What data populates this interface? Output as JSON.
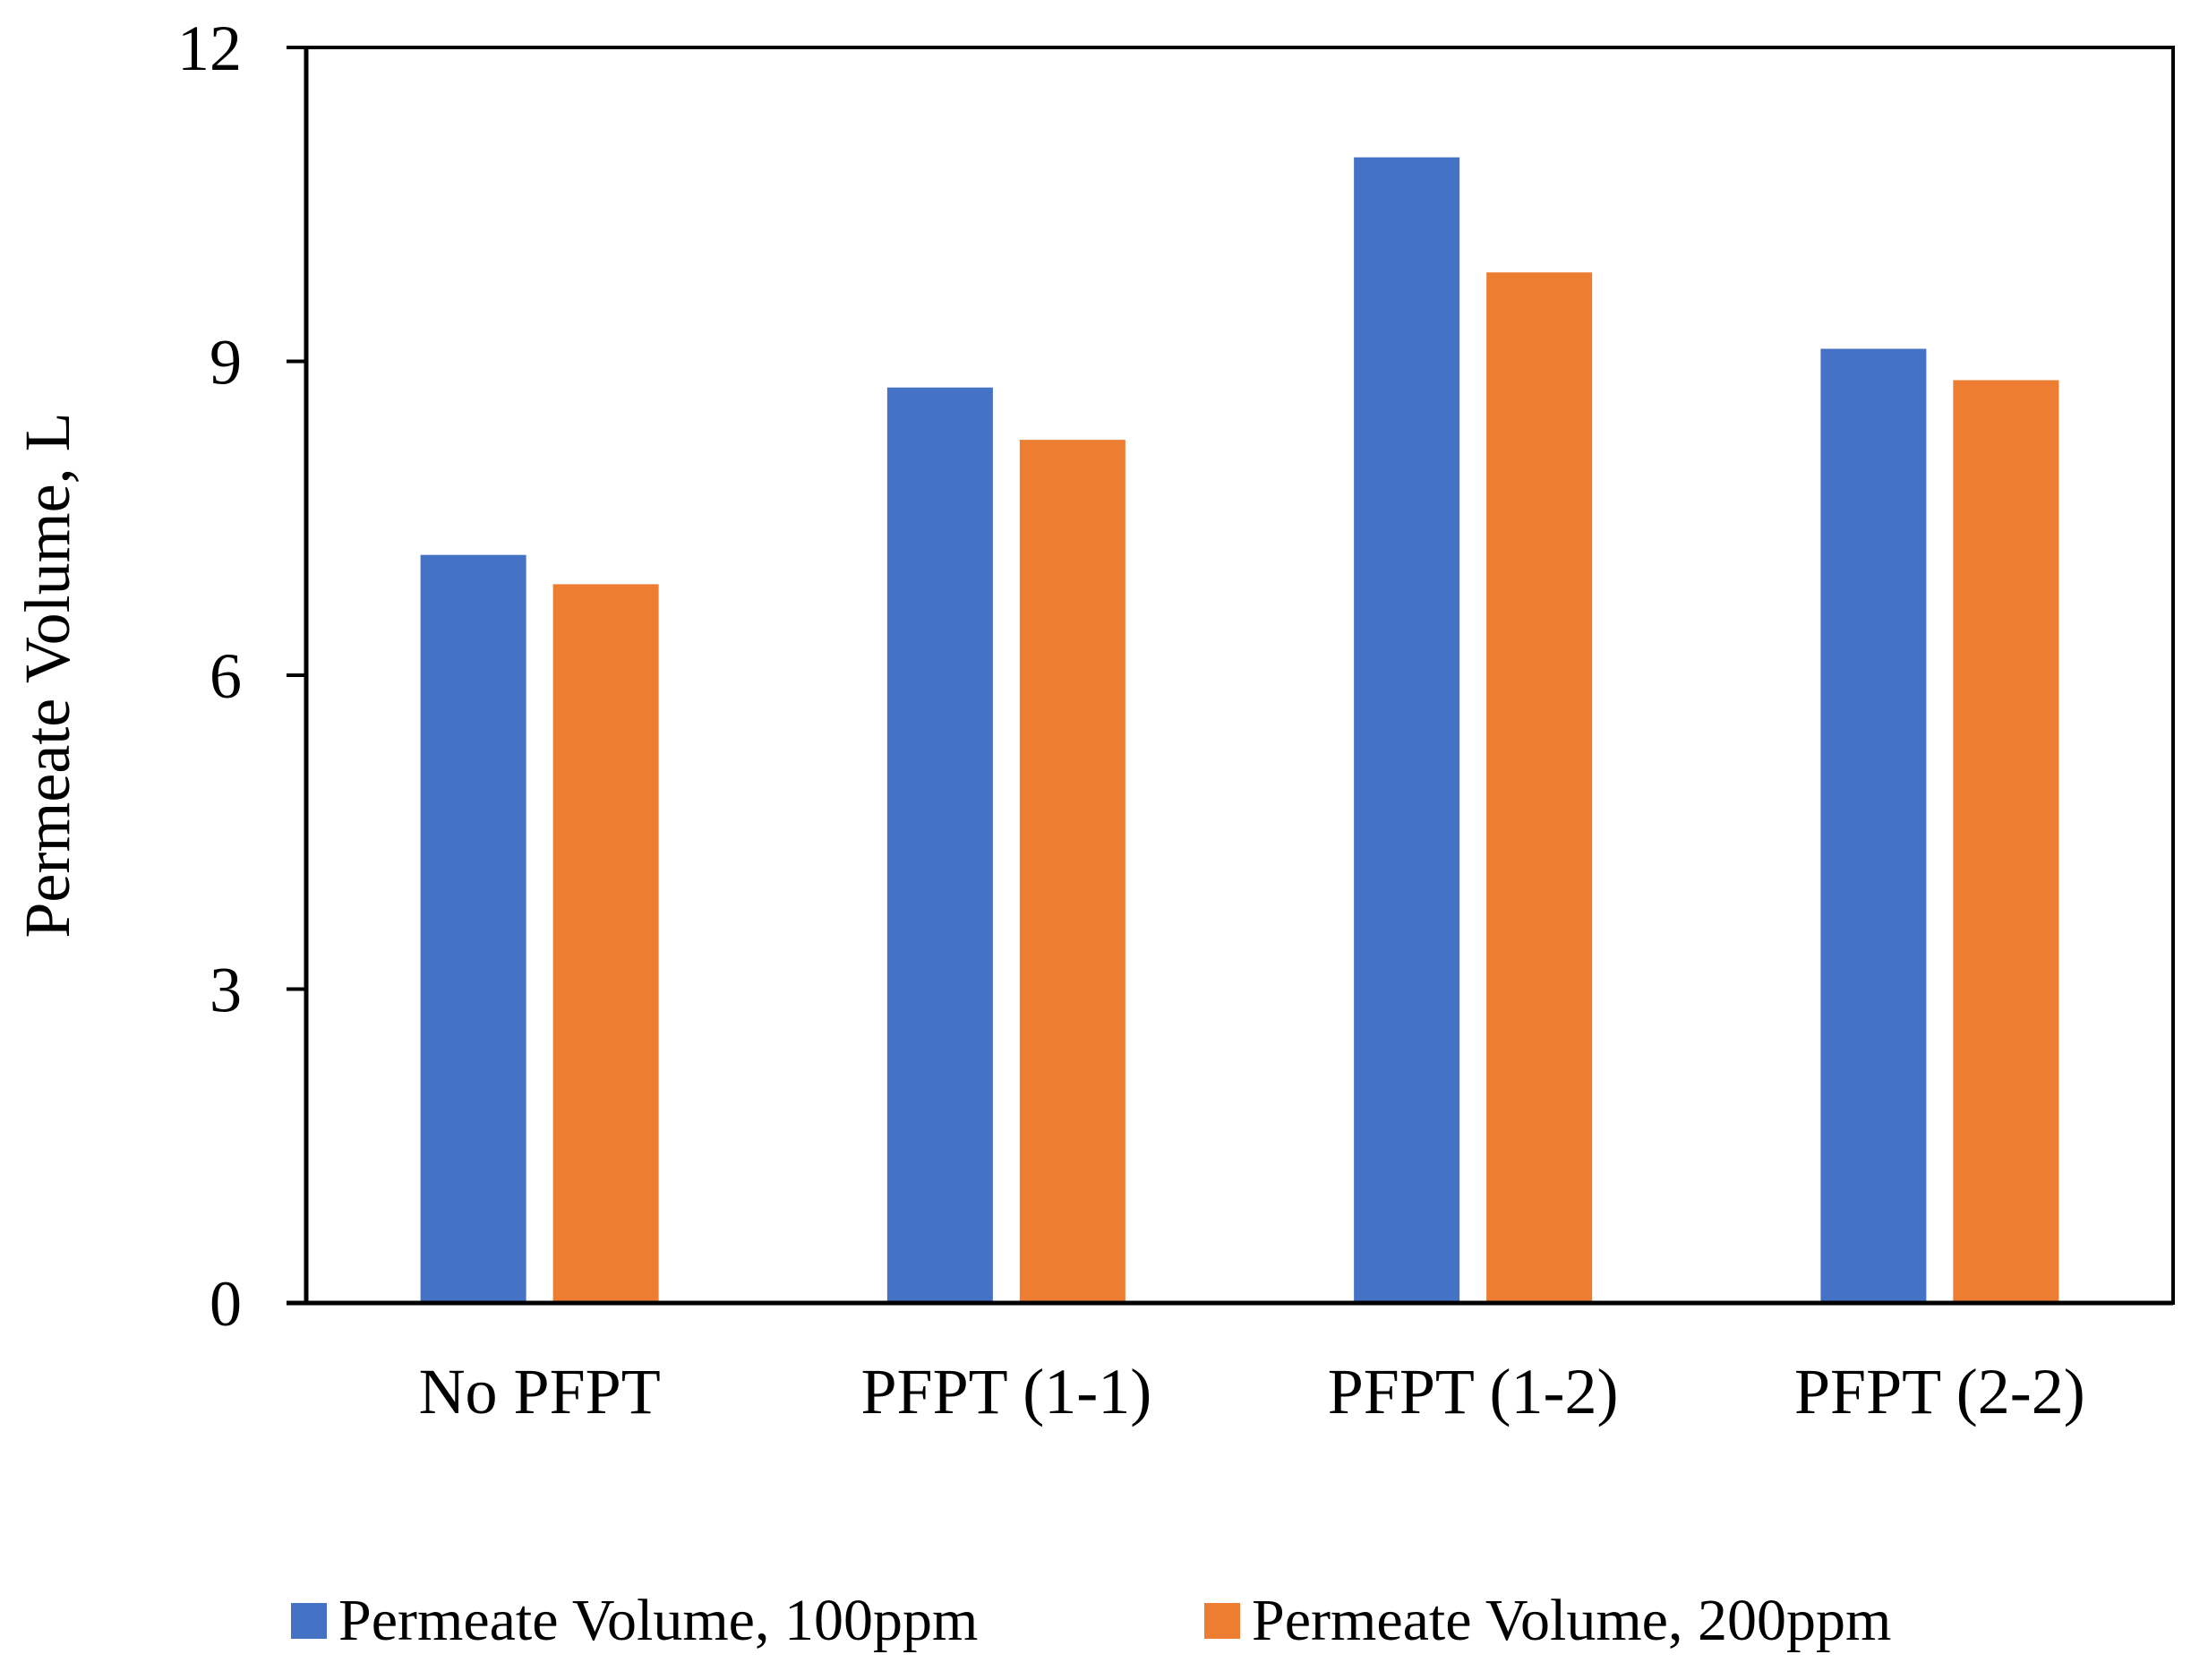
{
  "chart_data": {
    "type": "bar",
    "title": "",
    "xlabel": "",
    "ylabel": "Permeate Volume, L",
    "ylim": [
      0,
      12
    ],
    "yticks": [
      0,
      3,
      6,
      9,
      12
    ],
    "grid": false,
    "legend_position": "bottom",
    "categories": [
      "No PFPT",
      "PFPT (1-1)",
      "PFPT (1-2)",
      "PFPT (2-2)"
    ],
    "series": [
      {
        "name": "Permeate Volume, 100ppm",
        "color": "#4472C4",
        "values": [
          7.15,
          8.75,
          10.95,
          9.12
        ]
      },
      {
        "name": "Permeate Volume, 200ppm",
        "color": "#ED7D31",
        "values": [
          6.87,
          8.25,
          9.85,
          8.82
        ]
      }
    ]
  }
}
